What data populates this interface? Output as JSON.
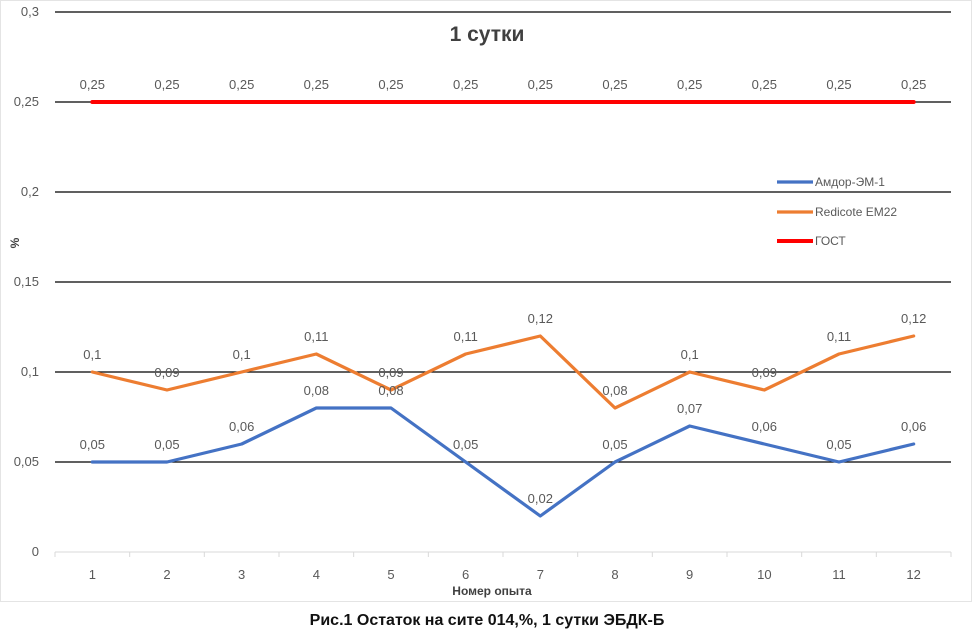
{
  "chart_data": {
    "type": "line",
    "title": "1 сутки",
    "xlabel": "Номер опыта",
    "ylabel": "%",
    "categories": [
      "1",
      "2",
      "3",
      "4",
      "5",
      "6",
      "7",
      "8",
      "9",
      "10",
      "11",
      "12"
    ],
    "yticks": [
      "0",
      "0,05",
      "0,1",
      "0,15",
      "0,2",
      "0,25",
      "0,3"
    ],
    "ylim": [
      0,
      0.3
    ],
    "grid": true,
    "legend_position": "right",
    "series": [
      {
        "name": "Амдор-ЭМ-1",
        "color": "#4472c4",
        "values": [
          0.05,
          0.05,
          0.06,
          0.08,
          0.08,
          0.05,
          0.02,
          0.05,
          0.07,
          0.06,
          0.05,
          0.06
        ],
        "labels": [
          "0,05",
          "0,05",
          "0,06",
          "0,08",
          "0,08",
          "0,05",
          "0,02",
          "0,05",
          "0,07",
          "0,06",
          "0,05",
          "0,06"
        ]
      },
      {
        "name": "Redicote EM22",
        "color": "#ed7d31",
        "values": [
          0.1,
          0.09,
          0.1,
          0.11,
          0.09,
          0.11,
          0.12,
          0.08,
          0.1,
          0.09,
          0.11,
          0.12
        ],
        "labels": [
          "0,1",
          "0,09",
          "0,1",
          "0,11",
          "0,09",
          "0,11",
          "0,12",
          "0,08",
          "0,1",
          "0,09",
          "0,11",
          "0,12"
        ]
      },
      {
        "name": "ГОСТ",
        "color": "#ff0000",
        "values": [
          0.25,
          0.25,
          0.25,
          0.25,
          0.25,
          0.25,
          0.25,
          0.25,
          0.25,
          0.25,
          0.25,
          0.25
        ],
        "labels": [
          "0,25",
          "0,25",
          "0,25",
          "0,25",
          "0,25",
          "0,25",
          "0,25",
          "0,25",
          "0,25",
          "0,25",
          "0,25",
          "0,25"
        ]
      }
    ]
  },
  "caption": "Рис.1 Остаток на сите 014,%, 1 сутки ЭБДК-Б"
}
